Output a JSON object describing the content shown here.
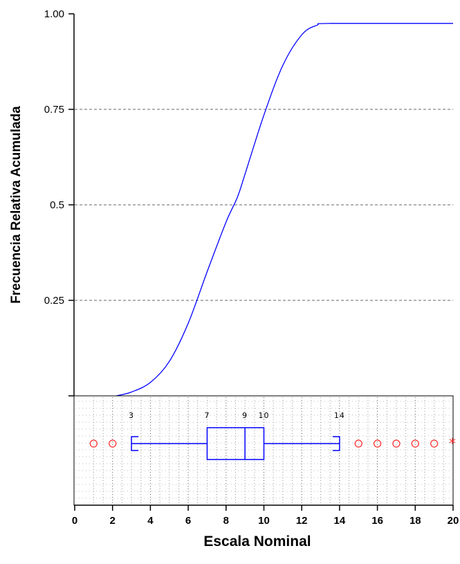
{
  "chart_data": {
    "type": "line",
    "subtype": "cumulative-distribution-with-boxplot",
    "title": "",
    "xlabel": "Escala Nominal",
    "ylabel": "Frecuencia Relativa Acumulada",
    "xlim": [
      0,
      20
    ],
    "ylim": [
      0,
      1.0
    ],
    "grid": true,
    "legend": "none",
    "y_ticks": [
      {
        "value": 1.0,
        "label": "1.00"
      },
      {
        "value": 0.75,
        "label": "0.75"
      },
      {
        "value": 0.5,
        "label": "0.5"
      },
      {
        "value": 0.25,
        "label": "0.25"
      }
    ],
    "x_ticks": [
      {
        "value": 0,
        "label": "0"
      },
      {
        "value": 2,
        "label": "2"
      },
      {
        "value": 4,
        "label": "4"
      },
      {
        "value": 6,
        "label": "6"
      },
      {
        "value": 8,
        "label": "8"
      },
      {
        "value": 10,
        "label": "10"
      },
      {
        "value": 12,
        "label": "12"
      },
      {
        "value": 14,
        "label": "14"
      },
      {
        "value": 16,
        "label": "16"
      },
      {
        "value": 18,
        "label": "18"
      },
      {
        "value": 20,
        "label": "20"
      }
    ],
    "series": [
      {
        "color": "#0000ff",
        "x": [
          2.2,
          3.0,
          4.0,
          5.0,
          6.0,
          7.0,
          8.0,
          8.6,
          9.0,
          10.0,
          11.0,
          12.0,
          12.8,
          13.6,
          20.0
        ],
        "y": [
          0.0,
          0.01,
          0.035,
          0.09,
          0.19,
          0.325,
          0.455,
          0.52,
          0.58,
          0.735,
          0.865,
          0.945,
          0.97,
          0.975,
          0.975
        ]
      }
    ],
    "boxplot": {
      "color": "#0000ff",
      "whisker_low": 3,
      "q1": 7,
      "median": 9,
      "q3": 10,
      "whisker_high": 14,
      "outliers": [
        1,
        2,
        15,
        16,
        17,
        18,
        19
      ],
      "extreme_outliers": [
        20
      ],
      "outlier_color": "#ff3333",
      "annotations": [
        {
          "value": 3,
          "label": "3"
        },
        {
          "value": 7,
          "label": "7"
        },
        {
          "value": 9,
          "label": "9"
        },
        {
          "value": 10,
          "label": "10"
        },
        {
          "value": 14,
          "label": "14"
        }
      ]
    }
  }
}
